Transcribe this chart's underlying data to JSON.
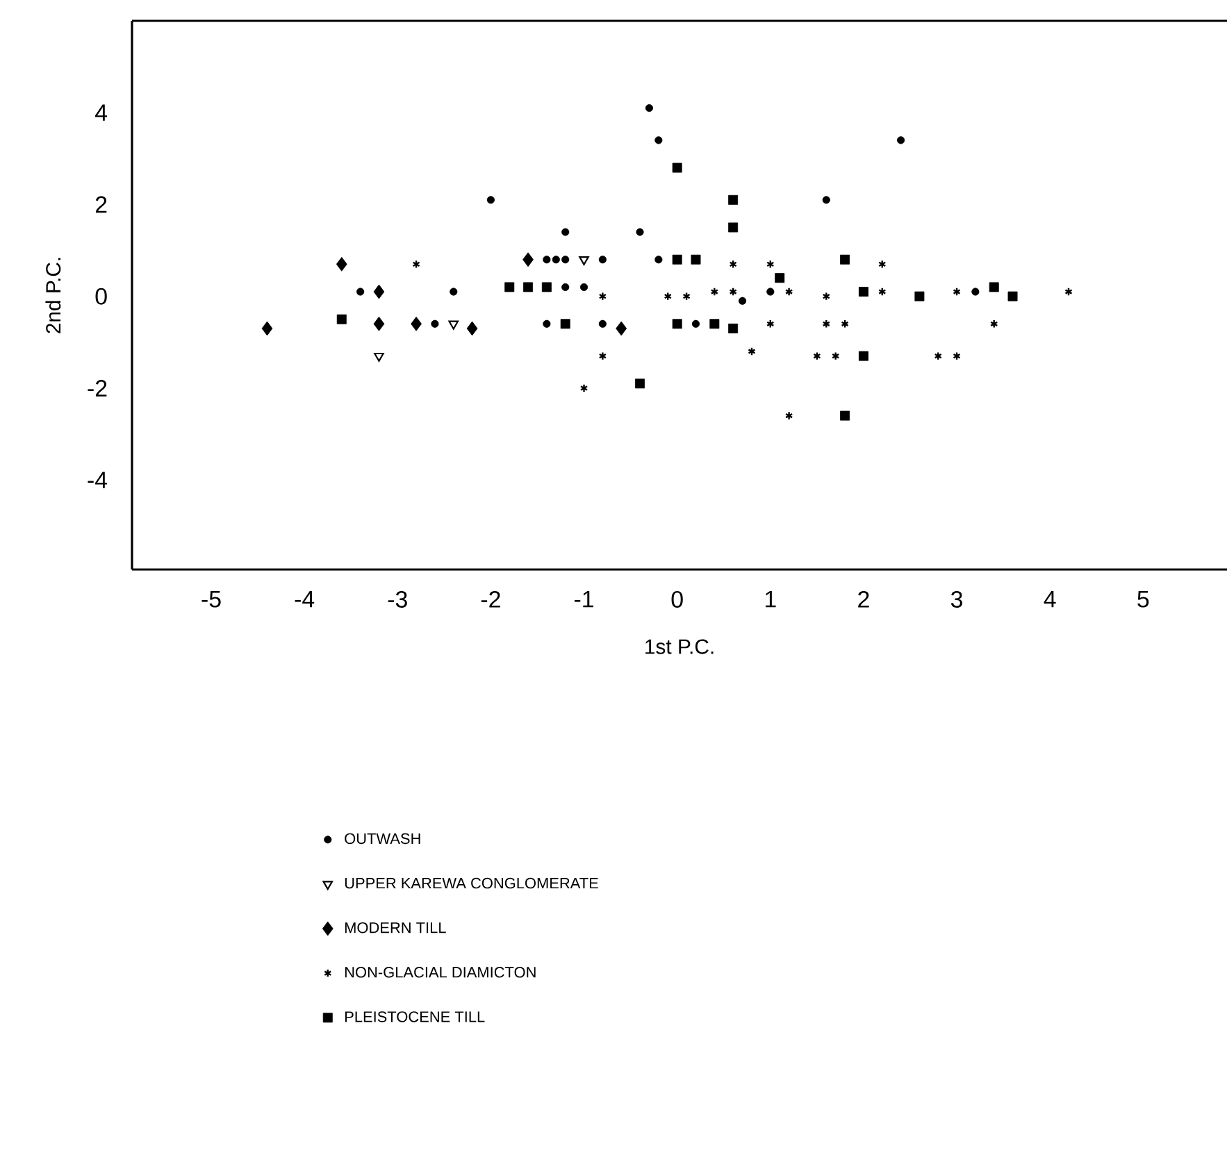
{
  "chart_data": {
    "type": "scatter",
    "xlabel": "1st P.C.",
    "ylabel": "2nd P.C.",
    "xlim": [
      -5.85,
      5.9
    ],
    "ylim": [
      -5.95,
      6.0
    ],
    "xticks": [
      -5,
      -4,
      -3,
      -2,
      -1,
      0,
      1,
      2,
      3,
      4,
      5
    ],
    "yticks": [
      -4,
      -2,
      0,
      2,
      4
    ],
    "grid": false,
    "legend": "bottom",
    "series": [
      {
        "name": "OUTWASH",
        "color": "#000000",
        "marker": "circle",
        "x": [
          -2.0,
          -0.3,
          -0.2,
          -1.2,
          -0.4,
          1.6,
          2.4,
          -3.4,
          -2.4,
          -2.6,
          -1.4,
          -1.3,
          -1.2,
          -0.8,
          -1.2,
          -1.0,
          -1.4,
          -0.8,
          -0.2,
          0.2,
          0.7,
          1.0,
          3.2
        ],
        "values": [
          2.1,
          4.1,
          3.4,
          1.4,
          1.4,
          2.1,
          3.4,
          0.1,
          0.1,
          -0.6,
          0.8,
          0.8,
          0.8,
          0.8,
          0.2,
          0.2,
          -0.6,
          -0.6,
          0.8,
          -0.6,
          -0.1,
          0.1,
          0.1
        ]
      },
      {
        "name": "UPPER KAREWA CONGLOMERATE",
        "color": "#000000",
        "marker": "triangle",
        "x": [
          -2.4,
          -3.2,
          -1.0
        ],
        "values": [
          -0.6,
          -1.3,
          0.8
        ]
      },
      {
        "name": "MODERN TILL",
        "color": "#000000",
        "marker": "diamond",
        "x": [
          -4.4,
          -3.6,
          -3.2,
          -3.2,
          -2.8,
          -2.2,
          -1.6,
          -0.6
        ],
        "values": [
          -0.7,
          0.7,
          0.1,
          -0.6,
          -0.6,
          -0.7,
          0.8,
          -0.7
        ]
      },
      {
        "name": "NON-GLACIAL DIAMICTON",
        "color": "#000000",
        "marker": "cross",
        "x": [
          -2.8,
          -0.8,
          -0.1,
          0.1,
          0.4,
          0.6,
          1.2,
          1.6,
          0.6,
          1.0,
          -0.8,
          -1.0,
          0.8,
          1.0,
          1.6,
          1.8,
          1.5,
          1.7,
          1.2,
          2.2,
          2.2,
          3.0,
          3.4,
          2.8,
          3.0,
          4.2
        ],
        "values": [
          0.7,
          0.0,
          0.0,
          0.0,
          0.1,
          0.1,
          0.1,
          0.0,
          0.7,
          0.7,
          -1.3,
          -2.0,
          -1.2,
          -0.6,
          -0.6,
          -0.6,
          -1.3,
          -1.3,
          -2.6,
          0.7,
          0.1,
          0.1,
          -0.6,
          -1.3,
          -1.3,
          0.1
        ]
      },
      {
        "name": "PLEISTOCENE TILL",
        "color": "#000000",
        "marker": "square",
        "x": [
          -3.6,
          0.0,
          0.6,
          0.6,
          0.0,
          0.2,
          1.8,
          -1.8,
          -1.6,
          -1.4,
          1.1,
          2.0,
          -1.2,
          0.0,
          0.4,
          0.6,
          -0.4,
          1.8,
          2.6,
          3.4,
          3.6,
          2.0
        ],
        "values": [
          -0.5,
          2.8,
          2.1,
          1.5,
          0.8,
          0.8,
          0.8,
          0.2,
          0.2,
          0.2,
          0.4,
          0.1,
          -0.6,
          -0.6,
          -0.6,
          -0.7,
          -1.9,
          -2.6,
          0.0,
          0.2,
          0.0,
          -1.3
        ]
      }
    ]
  }
}
